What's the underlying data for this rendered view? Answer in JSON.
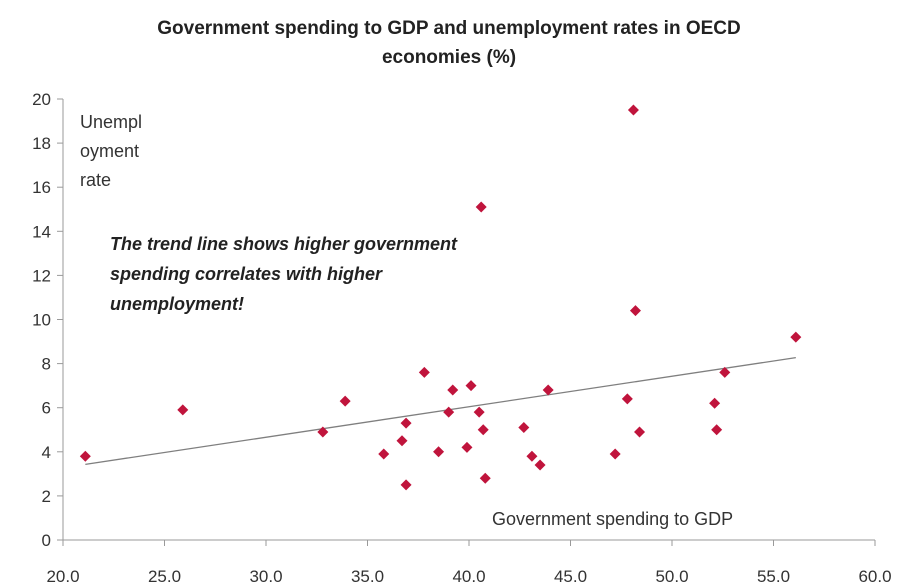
{
  "chart_data": {
    "type": "scatter",
    "title_lines": [
      "Government spending to GDP and unemployment rates in OECD",
      "economies (%)"
    ],
    "xlabel": "Government spending to GDP",
    "ylabel_lines": [
      "Unempl",
      "oyment",
      "rate"
    ],
    "annotation_lines": [
      "The trend line  shows higher government",
      "spending correlates  with higher",
      "unemployment!"
    ],
    "xlim": [
      20,
      60
    ],
    "ylim": [
      0,
      20
    ],
    "x_ticks": [
      "20.0",
      "25.0",
      "30.0",
      "35.0",
      "40.0",
      "45.0",
      "50.0",
      "55.0",
      "60.0"
    ],
    "y_ticks": [
      "0",
      "2",
      "4",
      "6",
      "8",
      "10",
      "12",
      "14",
      "16",
      "18",
      "20"
    ],
    "grid": false,
    "marker_color": "#c0143c",
    "trendline_color": "#7f7f7f",
    "points": [
      {
        "x": 21.1,
        "y": 3.8
      },
      {
        "x": 25.9,
        "y": 5.9
      },
      {
        "x": 32.8,
        "y": 4.9
      },
      {
        "x": 33.9,
        "y": 6.3
      },
      {
        "x": 35.8,
        "y": 3.9
      },
      {
        "x": 36.7,
        "y": 4.5
      },
      {
        "x": 36.9,
        "y": 5.3
      },
      {
        "x": 36.9,
        "y": 2.5
      },
      {
        "x": 37.8,
        "y": 7.6
      },
      {
        "x": 38.5,
        "y": 4.0
      },
      {
        "x": 39.0,
        "y": 5.8
      },
      {
        "x": 39.2,
        "y": 6.8
      },
      {
        "x": 39.9,
        "y": 4.2
      },
      {
        "x": 40.1,
        "y": 7.0
      },
      {
        "x": 40.5,
        "y": 5.8
      },
      {
        "x": 40.6,
        "y": 15.1
      },
      {
        "x": 40.7,
        "y": 5.0
      },
      {
        "x": 40.8,
        "y": 2.8
      },
      {
        "x": 42.7,
        "y": 5.1
      },
      {
        "x": 43.1,
        "y": 3.8
      },
      {
        "x": 43.5,
        "y": 3.4
      },
      {
        "x": 43.9,
        "y": 6.8
      },
      {
        "x": 47.2,
        "y": 3.9
      },
      {
        "x": 47.8,
        "y": 6.4
      },
      {
        "x": 48.1,
        "y": 19.5
      },
      {
        "x": 48.2,
        "y": 10.4
      },
      {
        "x": 48.4,
        "y": 4.9
      },
      {
        "x": 52.1,
        "y": 6.2
      },
      {
        "x": 52.2,
        "y": 5.0
      },
      {
        "x": 52.6,
        "y": 7.6
      },
      {
        "x": 56.1,
        "y": 9.2
      }
    ],
    "trendline": {
      "x": [
        21.1,
        56.1
      ],
      "y": [
        3.43,
        8.27
      ]
    }
  }
}
